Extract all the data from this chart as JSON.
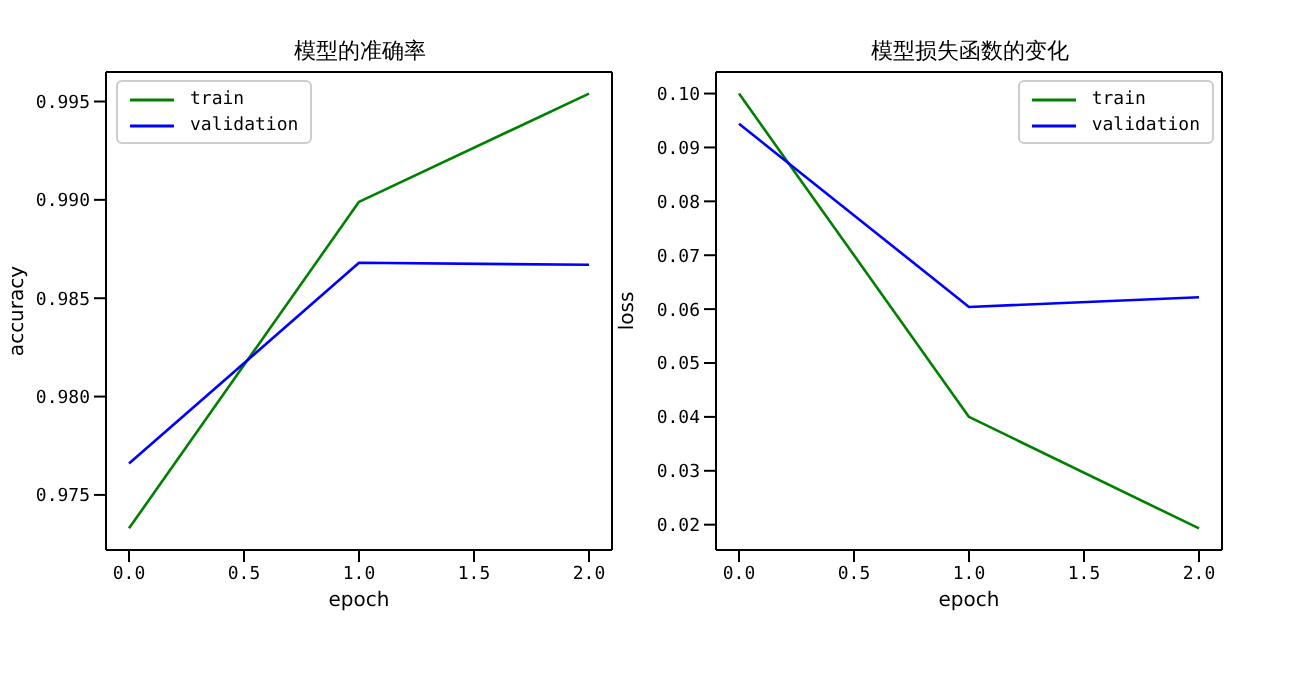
{
  "chart_data": [
    {
      "type": "line",
      "title": "模型的准确率",
      "xlabel": "epoch",
      "ylabel": "accuracy",
      "x": [
        0,
        1,
        2
      ],
      "xlim": [
        -0.1,
        2.1
      ],
      "xticks": [
        {
          "value": 0,
          "label": "0.0"
        },
        {
          "value": 0.5,
          "label": "0.5"
        },
        {
          "value": 1,
          "label": "1.0"
        },
        {
          "value": 1.5,
          "label": "1.5"
        },
        {
          "value": 2,
          "label": "2.0"
        }
      ],
      "ylim": [
        0.9722,
        0.9965
      ],
      "yticks": [
        0.975,
        {
          "value": 0.98,
          "label": "0.980"
        },
        0.985,
        {
          "value": 0.99,
          "label": "0.990"
        },
        0.995
      ],
      "legend": "top left",
      "grid": false,
      "series": [
        {
          "name": "train",
          "color": "#008000",
          "values": [
            0.9733,
            0.9899,
            0.9954
          ]
        },
        {
          "name": "validation",
          "color": "#0000ff",
          "values": [
            0.9766,
            0.9868,
            0.9867
          ]
        }
      ]
    },
    {
      "type": "line",
      "title": "模型损失函数的变化",
      "xlabel": "epoch",
      "ylabel": "loss",
      "x": [
        0,
        1,
        2
      ],
      "xlim": [
        -0.1,
        2.1
      ],
      "xticks": [
        {
          "value": 0,
          "label": "0.0"
        },
        {
          "value": 0.5,
          "label": "0.5"
        },
        {
          "value": 1,
          "label": "1.0"
        },
        {
          "value": 1.5,
          "label": "1.5"
        },
        {
          "value": 2,
          "label": "2.0"
        }
      ],
      "ylim": [
        0.0153,
        0.104
      ],
      "yticks": [
        {
          "value": 0.02,
          "label": "0.02"
        },
        {
          "value": 0.03,
          "label": "0.03"
        },
        {
          "value": 0.04,
          "label": "0.04"
        },
        {
          "value": 0.05,
          "label": "0.05"
        },
        {
          "value": 0.06,
          "label": "0.06"
        },
        {
          "value": 0.07,
          "label": "0.07"
        },
        {
          "value": 0.08,
          "label": "0.08"
        },
        {
          "value": 0.09,
          "label": "0.09"
        },
        {
          "value": 0.1,
          "label": "0.10"
        }
      ],
      "legend": "top right",
      "grid": false,
      "series": [
        {
          "name": "train",
          "color": "#008000",
          "values": [
            0.1,
            0.04,
            0.0193
          ]
        },
        {
          "name": "validation",
          "color": "#0000ff",
          "values": [
            0.0944,
            0.0604,
            0.0622
          ]
        }
      ]
    }
  ]
}
